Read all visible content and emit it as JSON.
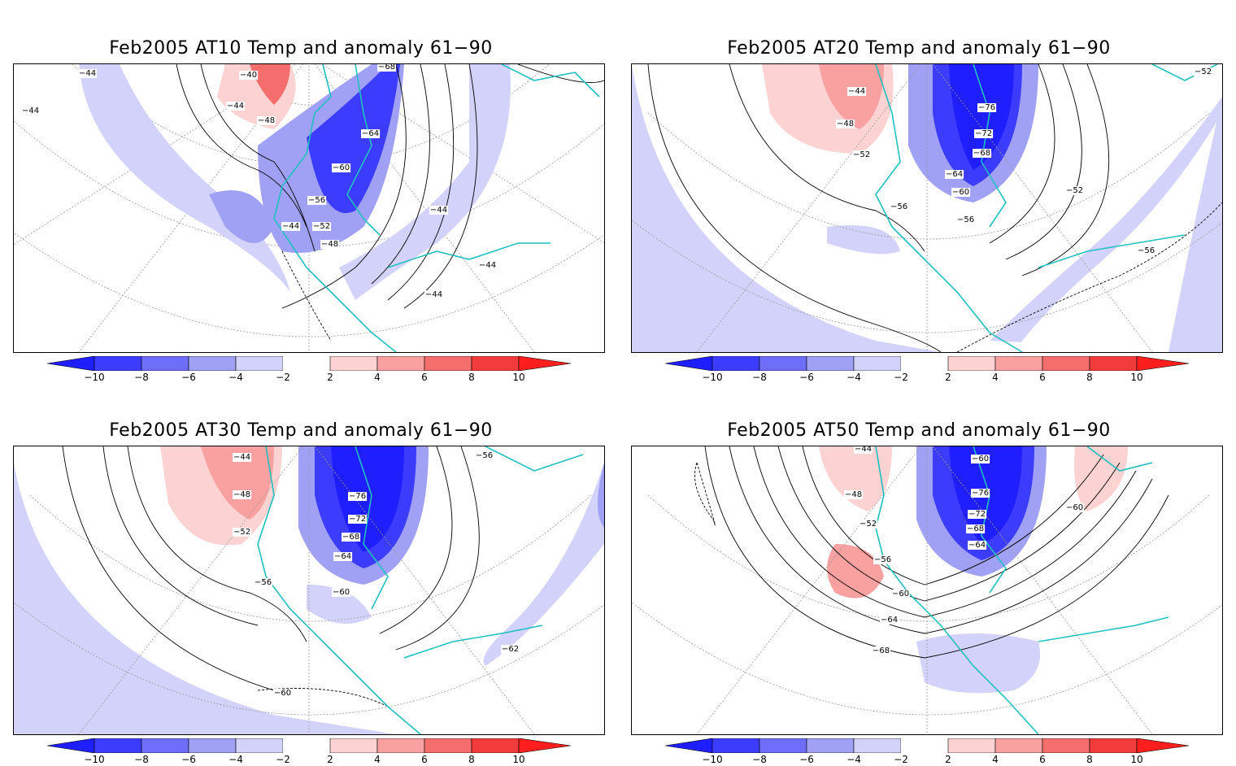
{
  "colorbar": {
    "ticks": [
      "−10",
      "−8",
      "−6",
      "−4",
      "−2",
      "2",
      "4",
      "6",
      "8",
      "10"
    ],
    "colors": [
      "#1e1eff",
      "#3c3cff",
      "#6e6efa",
      "#a0a0f5",
      "#d2d2fa",
      "#ffffff",
      "#fcd2d2",
      "#f9a0a0",
      "#f56e6e",
      "#f23c3c",
      "#ff1e1e"
    ]
  },
  "coastline_color": "#20c0c0",
  "panels": [
    {
      "title": "Feb2005 AT10 Temp and anomaly 61−90",
      "labels": [
        "−44",
        "−40",
        "−68",
        "−44",
        "−48",
        "−64",
        "−60",
        "−56",
        "−52",
        "−44",
        "−48",
        "−44",
        "−44",
        "−44",
        "−44"
      ]
    },
    {
      "title": "Feb2005 AT20 Temp and anomaly 61−90",
      "labels": [
        "−44",
        "−48",
        "−52",
        "−76",
        "−72",
        "−68",
        "−64",
        "−60",
        "−56",
        "−56",
        "−52",
        "−52",
        "−56"
      ]
    },
    {
      "title": "Feb2005 AT30 Temp and anomaly 61−90",
      "labels": [
        "−44",
        "−48",
        "−52",
        "−76",
        "−72",
        "−68",
        "−64",
        "−56",
        "−60",
        "−56",
        "−60",
        "−62"
      ]
    },
    {
      "title": "Feb2005 AT50 Temp and anomaly 61−90",
      "labels": [
        "−44",
        "−60",
        "−48",
        "−76",
        "−72",
        "−52",
        "−68",
        "−64",
        "−56",
        "−60",
        "−60",
        "−64",
        "−68"
      ]
    }
  ]
}
